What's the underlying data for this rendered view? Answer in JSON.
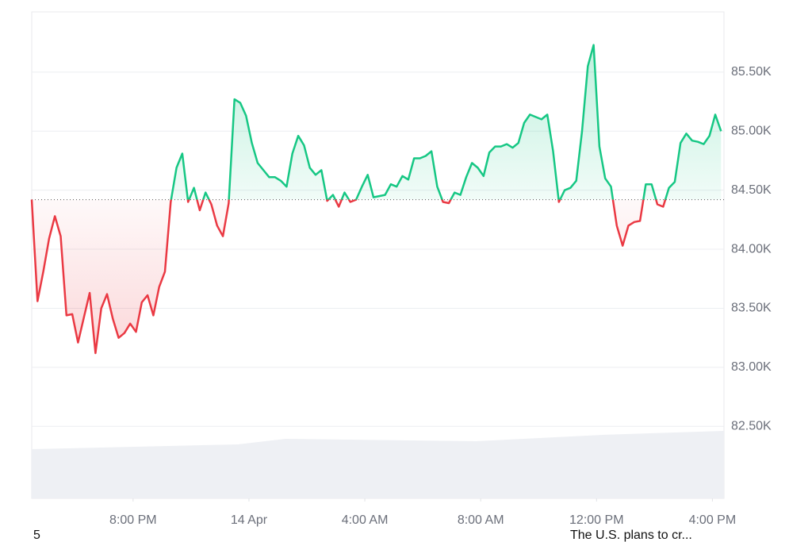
{
  "chart_data": {
    "type": "line",
    "x": [
      16.5,
      16.7,
      16.9,
      17.1,
      17.3,
      17.5,
      17.7,
      17.9,
      18.1,
      18.3,
      18.5,
      18.7,
      18.9,
      19.1,
      19.3,
      19.5,
      19.7,
      19.9,
      20.1,
      20.3,
      20.5,
      20.7,
      20.9,
      21.1,
      21.3,
      21.5,
      21.7,
      21.9,
      22.1,
      22.3,
      22.5,
      22.7,
      22.9,
      23.1,
      23.3,
      23.5,
      23.7,
      23.9,
      24.1,
      24.3,
      24.5,
      24.7,
      24.9,
      25.1,
      25.3,
      25.5,
      25.7,
      25.9,
      26.1,
      26.3,
      26.5,
      26.7,
      26.9,
      27.1,
      27.3,
      27.5,
      27.7,
      27.9,
      28.1,
      28.3,
      28.5,
      28.7,
      28.9,
      29.1,
      29.3,
      29.5,
      29.7,
      29.9,
      30.1,
      30.3,
      30.5,
      30.7,
      30.9,
      31.1,
      31.3,
      31.5,
      31.7,
      31.9,
      32.1,
      32.3,
      32.5,
      32.7,
      32.9,
      33.1,
      33.3,
      33.5,
      33.7,
      33.9,
      34.1,
      34.3,
      34.5,
      34.7,
      34.9,
      35.1,
      35.3,
      35.5,
      35.7,
      35.9,
      36.1,
      36.3,
      36.5,
      36.7,
      36.9,
      37.1,
      37.3,
      37.5,
      37.7,
      37.9,
      38.1,
      38.3,
      38.5,
      38.7,
      38.9,
      39.1,
      39.3,
      39.5,
      39.7,
      39.9,
      40.1,
      40.3
    ],
    "values": [
      84420,
      83560,
      83810,
      84090,
      84280,
      84110,
      83440,
      83450,
      83210,
      83420,
      83630,
      83120,
      83500,
      83620,
      83410,
      83250,
      83290,
      83370,
      83300,
      83550,
      83610,
      83440,
      83680,
      83810,
      84400,
      84690,
      84810,
      84400,
      84520,
      84330,
      84480,
      84380,
      84200,
      84110,
      84390,
      85270,
      85240,
      85130,
      84900,
      84730,
      84670,
      84610,
      84610,
      84580,
      84530,
      84810,
      84960,
      84880,
      84690,
      84630,
      84670,
      84410,
      84460,
      84360,
      84480,
      84400,
      84420,
      84530,
      84630,
      84440,
      84450,
      84460,
      84550,
      84530,
      84620,
      84590,
      84770,
      84770,
      84790,
      84830,
      84530,
      84400,
      84390,
      84480,
      84460,
      84610,
      84730,
      84690,
      84620,
      84820,
      84870,
      84870,
      84890,
      84860,
      84900,
      85070,
      85140,
      85120,
      85100,
      85140,
      84830,
      84400,
      84500,
      84520,
      84580,
      85000,
      85550,
      85730,
      84870,
      84600,
      84530,
      84200,
      84030,
      84200,
      84230,
      84240,
      84550,
      84550,
      84380,
      84360,
      84520,
      84570,
      84900,
      84980,
      84920,
      84910,
      84890,
      84960,
      85140,
      85000
    ],
    "baseline": 84420,
    "up_color": "#16c784",
    "down_color": "#ea3943",
    "xlim": [
      16.5,
      40.4
    ],
    "xticks": [
      {
        "value": 20,
        "label": "8:00 PM"
      },
      {
        "value": 24,
        "label": "14 Apr"
      },
      {
        "value": 28,
        "label": "4:00 AM"
      },
      {
        "value": 32,
        "label": "8:00 AM"
      },
      {
        "value": 36,
        "label": "12:00 PM"
      },
      {
        "value": 40,
        "label": "4:00 PM"
      }
    ],
    "ylim": [
      81890,
      86010
    ],
    "yticks": [
      {
        "value": 82500,
        "label": "82.50K"
      },
      {
        "value": 83000,
        "label": "83.00K"
      },
      {
        "value": 83500,
        "label": "83.50K"
      },
      {
        "value": 84000,
        "label": "84.00K"
      },
      {
        "value": 84500,
        "label": "84.50K"
      },
      {
        "value": 85000,
        "label": "85.00K"
      },
      {
        "value": 85500,
        "label": "85.50K"
      }
    ],
    "grid": true
  },
  "news": {
    "count": 5,
    "headline": "The U.S. plans to cr..."
  }
}
